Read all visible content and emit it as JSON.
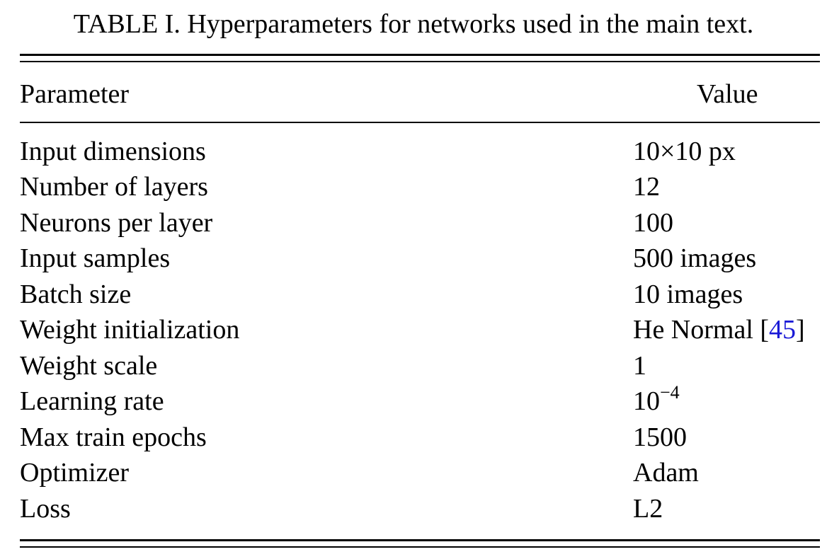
{
  "caption": "TABLE I.  Hyperparameters for networks used in the main text.",
  "table": {
    "headers": {
      "parameter": "Parameter",
      "value": "Value"
    },
    "rows": [
      {
        "parameter": "Input dimensions",
        "value": "10×10 px"
      },
      {
        "parameter": "Number of layers",
        "value": "12"
      },
      {
        "parameter": "Neurons per layer",
        "value": "100"
      },
      {
        "parameter": "Input samples",
        "value": "500 images"
      },
      {
        "parameter": "Batch size",
        "value": "10 images"
      },
      {
        "parameter": "Weight initialization",
        "value": "He Normal [",
        "citation": "45",
        "value_suffix": "]"
      },
      {
        "parameter": "Weight scale",
        "value": "1"
      },
      {
        "parameter": "Learning rate",
        "value": "10",
        "exponent": "−4"
      },
      {
        "parameter": "Max train epochs",
        "value": "1500"
      },
      {
        "parameter": "Optimizer",
        "value": "Adam"
      },
      {
        "parameter": "Loss",
        "value": "L2"
      }
    ]
  },
  "colors": {
    "text": "#000000",
    "citation_link": "#1a1ad6",
    "background": "#ffffff"
  }
}
